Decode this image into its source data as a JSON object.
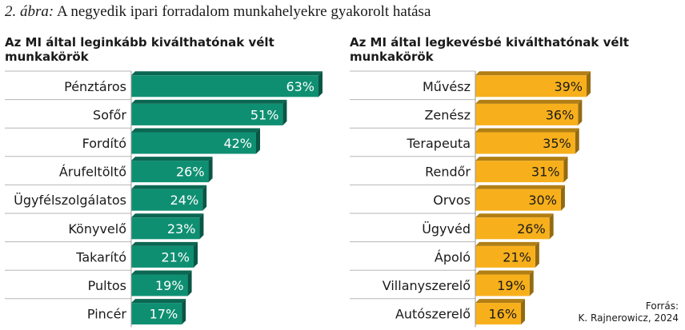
{
  "figure": {
    "title_lead": "2. ábra:",
    "title_rest": "A negyedik ipari forradalom munkahelyekre gyakorolt hatása"
  },
  "source": {
    "line1": "Forrás:",
    "line2": "K. Rajnerowicz, 2024"
  },
  "chart_data": [
    {
      "type": "bar",
      "orientation": "horizontal",
      "title": "Az MI által leginkább kiválthatónak vélt munkakörök",
      "title_lines": [
        "Az MI által leginkább kiválthatónak vélt",
        "munkakörök"
      ],
      "categories": [
        "Pénztáros",
        "Sofőr",
        "Fordító",
        "Árufeltöltő",
        "Ügyfélszolgálatos",
        "Könyvelő",
        "Takarító",
        "Pultos",
        "Pincér"
      ],
      "values": [
        63,
        51,
        42,
        26,
        24,
        23,
        21,
        19,
        17
      ],
      "value_labels": [
        "63%",
        "51%",
        "42%",
        "26%",
        "24%",
        "23%",
        "21%",
        "19%",
        "17%"
      ],
      "unit": "%",
      "xlim": [
        0,
        63
      ],
      "grid": false,
      "color": "#0f8f72",
      "label_color": "#ffffff"
    },
    {
      "type": "bar",
      "orientation": "horizontal",
      "title": "Az MI által legkevésbé kiválthatónak vélt munkakörök",
      "title_lines": [
        "Az MI által legkevésbé kiválthatónak vélt",
        "munkakörök"
      ],
      "categories": [
        "Művész",
        "Zenész",
        "Terapeuta",
        "Rendőr",
        "Orvos",
        "Ügyvéd",
        "Ápoló",
        "Villanyszerelő",
        "Autószerelő"
      ],
      "values": [
        39,
        36,
        35,
        31,
        30,
        26,
        21,
        19,
        16
      ],
      "value_labels": [
        "39%",
        "36%",
        "35%",
        "31%",
        "30%",
        "26%",
        "21%",
        "19%",
        "16%"
      ],
      "unit": "%",
      "xlim": [
        0,
        39
      ],
      "grid": false,
      "color": "#f7b01c",
      "label_color": "#1a1a1a"
    }
  ]
}
